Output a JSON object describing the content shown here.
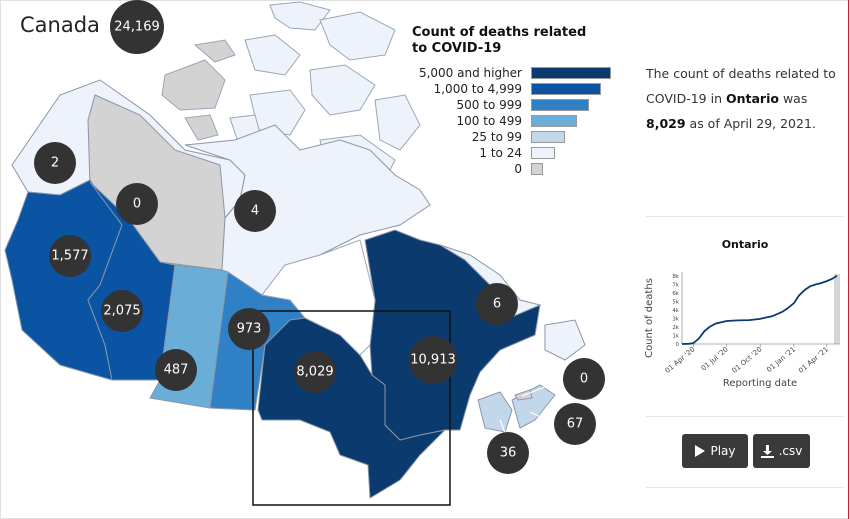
{
  "country": "Canada",
  "country_total": "24,169",
  "legend": {
    "title": "Count of deaths related to COVID-19",
    "items": [
      {
        "label": "5,000 and higher",
        "color": "#0b3a6e"
      },
      {
        "label": "1,000 to 4,999",
        "color": "#0a54a3"
      },
      {
        "label": "500 to 999",
        "color": "#2f80c4"
      },
      {
        "label": "100 to 499",
        "color": "#6aaed8"
      },
      {
        "label": "25 to 99",
        "color": "#c2d8ea"
      },
      {
        "label": "1 to 24",
        "color": "#eef2fa"
      },
      {
        "label": "0",
        "color": "#d3d3d3"
      }
    ]
  },
  "summary": {
    "prefix": "The count of deaths related to COVID-19 in",
    "region": "Ontario",
    "middle": "was",
    "value": "8,029",
    "suffix": "as of April 29, 2021."
  },
  "regions": [
    {
      "name": "Yukon",
      "value": "0"
    },
    {
      "name": "Northwest Territories",
      "value": "2"
    },
    {
      "name": "Nunavut",
      "value": "4"
    },
    {
      "name": "British Columbia",
      "value": "1,577"
    },
    {
      "name": "Alberta",
      "value": "2,075"
    },
    {
      "name": "Saskatchewan",
      "value": "487"
    },
    {
      "name": "Manitoba",
      "value": "973"
    },
    {
      "name": "Ontario",
      "value": "8,029"
    },
    {
      "name": "Quebec",
      "value": "10,913"
    },
    {
      "name": "Newfoundland and Labrador",
      "value": "6"
    },
    {
      "name": "Prince Edward Island",
      "value": "0"
    },
    {
      "name": "Nova Scotia",
      "value": "67"
    },
    {
      "name": "New Brunswick",
      "value": "36"
    }
  ],
  "chart_data": {
    "type": "line",
    "title": "Ontario",
    "xlabel": "Reporting date",
    "ylabel": "Count of deaths",
    "x_ticks": [
      "01 Apr '20",
      "01 Jul '20",
      "01 Oct '20",
      "01 Jan '21",
      "01 Apr '21"
    ],
    "y_ticks": [
      "0",
      "1k",
      "2k",
      "3k",
      "4k",
      "5k",
      "6k",
      "7k",
      "8k"
    ],
    "ylim": [
      0,
      8000
    ],
    "xlim": [
      "2020-03-01",
      "2021-04-29"
    ],
    "series": [
      {
        "color": "#0b3a6e",
        "points": [
          [
            "2020-03-01",
            0
          ],
          [
            "2020-03-20",
            20
          ],
          [
            "2020-04-01",
            100
          ],
          [
            "2020-04-15",
            600
          ],
          [
            "2020-05-01",
            1500
          ],
          [
            "2020-05-15",
            2000
          ],
          [
            "2020-06-01",
            2400
          ],
          [
            "2020-07-01",
            2700
          ],
          [
            "2020-08-01",
            2780
          ],
          [
            "2020-09-01",
            2810
          ],
          [
            "2020-10-01",
            2950
          ],
          [
            "2020-10-15",
            3100
          ],
          [
            "2020-11-01",
            3250
          ],
          [
            "2020-11-15",
            3500
          ],
          [
            "2020-12-01",
            3800
          ],
          [
            "2020-12-15",
            4200
          ],
          [
            "2021-01-01",
            4800
          ],
          [
            "2021-01-15",
            5700
          ],
          [
            "2021-02-01",
            6400
          ],
          [
            "2021-02-15",
            6800
          ],
          [
            "2021-03-01",
            7000
          ],
          [
            "2021-03-15",
            7150
          ],
          [
            "2021-04-01",
            7400
          ],
          [
            "2021-04-15",
            7650
          ],
          [
            "2021-04-29",
            8029
          ]
        ]
      }
    ]
  },
  "buttons": {
    "play": "Play",
    "csv": ".csv"
  },
  "icons": {
    "play": "play-icon",
    "download": "download-icon"
  }
}
